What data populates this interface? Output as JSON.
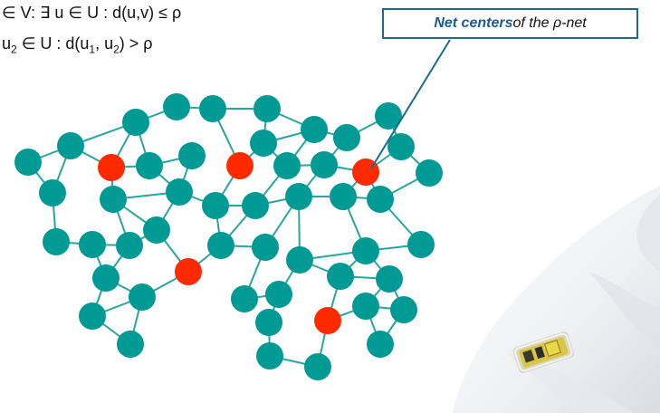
{
  "formulas": {
    "line1": {
      "lead": "∈ V:   ∃ u ∈ U : d(u,v) ≤ ρ"
    },
    "line2": {
      "lead": " u",
      "sub1": "2",
      "mid": " ∈ U : d(u",
      "sub2": "1",
      "sep": ", u",
      "sub3": "2",
      "tail": ") > ρ"
    }
  },
  "callout": {
    "bold": "Net centers",
    "rest": " of the ρ-net"
  },
  "colors": {
    "node": "#009a94",
    "center": "#ff2a00",
    "edge": "#2aa59e",
    "callout_line": "#1a6b8c"
  },
  "sensor_image": "sensor-board-on-snow"
}
